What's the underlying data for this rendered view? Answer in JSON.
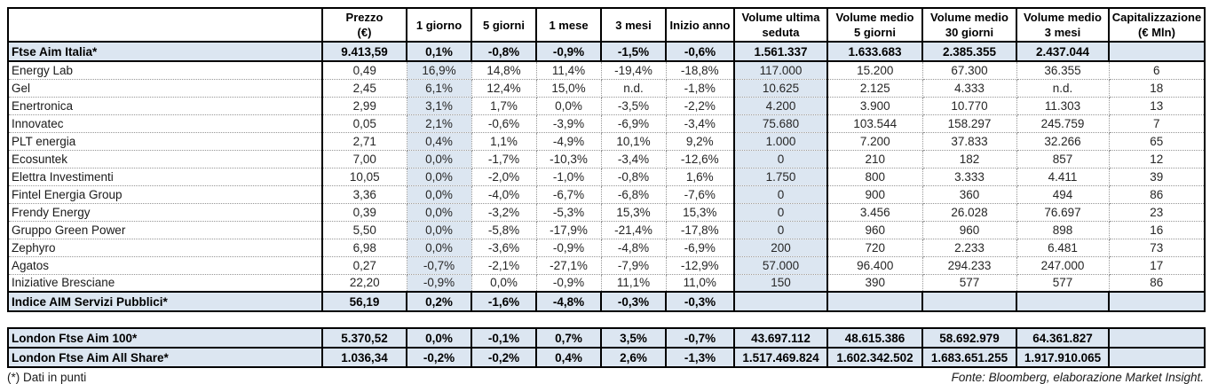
{
  "header": {
    "corner": "",
    "columns": [
      {
        "id": "prezzo",
        "line1": "Prezzo",
        "line2": "(€)"
      },
      {
        "id": "1-giorno",
        "line1": "1 giorno",
        "line2": ""
      },
      {
        "id": "5-giorni",
        "line1": "5 giorni",
        "line2": ""
      },
      {
        "id": "1-mese",
        "line1": "1 mese",
        "line2": ""
      },
      {
        "id": "3-mesi",
        "line1": "3 mesi",
        "line2": ""
      },
      {
        "id": "inizio-anno",
        "line1": "Inizio anno",
        "line2": ""
      },
      {
        "id": "vol-ultima",
        "line1": "Volume ultima",
        "line2": "seduta"
      },
      {
        "id": "vol-medio-5",
        "line1": "Volume medio",
        "line2": "5 giorni"
      },
      {
        "id": "vol-medio-30",
        "line1": "Volume medio",
        "line2": "30 giorni"
      },
      {
        "id": "vol-medio-3m",
        "line1": "Volume medio",
        "line2": "3 mesi"
      },
      {
        "id": "capitalizzazione",
        "line1": "Capitalizzazione",
        "line2": "(€ Mln)"
      }
    ]
  },
  "main_table": {
    "rows": [
      {
        "name": "Ftse Aim Italia*",
        "style": "index",
        "cells": [
          "9.413,59",
          "0,1%",
          "-0,8%",
          "-0,9%",
          "-1,5%",
          "-0,6%",
          "1.561.337",
          "1.633.683",
          "2.385.355",
          "2.437.044",
          ""
        ]
      },
      {
        "name": "Energy Lab",
        "style": "data",
        "cells": [
          "0,49",
          "16,9%",
          "14,8%",
          "11,4%",
          "-19,4%",
          "-18,8%",
          "117.000",
          "15.200",
          "67.300",
          "36.355",
          "6"
        ]
      },
      {
        "name": "Gel",
        "style": "data",
        "cells": [
          "2,45",
          "6,1%",
          "12,4%",
          "15,0%",
          "n.d.",
          "-1,8%",
          "10.625",
          "2.125",
          "4.333",
          "n.d.",
          "18"
        ]
      },
      {
        "name": "Enertronica",
        "style": "data",
        "cells": [
          "2,99",
          "3,1%",
          "1,7%",
          "0,0%",
          "-3,5%",
          "-2,2%",
          "4.200",
          "3.900",
          "10.770",
          "11.303",
          "13"
        ]
      },
      {
        "name": "Innovatec",
        "style": "data",
        "cells": [
          "0,05",
          "2,1%",
          "-0,6%",
          "-3,9%",
          "-6,9%",
          "-3,4%",
          "75.680",
          "103.544",
          "158.297",
          "245.759",
          "7"
        ]
      },
      {
        "name": "PLT energia",
        "style": "data",
        "cells": [
          "2,71",
          "0,4%",
          "1,1%",
          "-4,9%",
          "10,1%",
          "9,2%",
          "1.000",
          "7.200",
          "37.833",
          "32.266",
          "65"
        ]
      },
      {
        "name": "Ecosuntek",
        "style": "data",
        "cells": [
          "7,00",
          "0,0%",
          "-1,7%",
          "-10,3%",
          "-3,4%",
          "-12,6%",
          "0",
          "210",
          "182",
          "857",
          "12"
        ]
      },
      {
        "name": "Elettra Investimenti",
        "style": "data",
        "cells": [
          "10,05",
          "0,0%",
          "-2,0%",
          "-1,0%",
          "-0,8%",
          "1,6%",
          "1.750",
          "800",
          "3.333",
          "4.411",
          "39"
        ]
      },
      {
        "name": "Fintel Energia Group",
        "style": "data",
        "cells": [
          "3,36",
          "0,0%",
          "-4,0%",
          "-6,7%",
          "-6,8%",
          "-7,6%",
          "0",
          "900",
          "360",
          "494",
          "86"
        ]
      },
      {
        "name": "Frendy Energy",
        "style": "data",
        "cells": [
          "0,39",
          "0,0%",
          "-3,2%",
          "-5,3%",
          "15,3%",
          "15,3%",
          "0",
          "3.456",
          "26.028",
          "76.697",
          "23"
        ]
      },
      {
        "name": "Gruppo Green Power",
        "style": "data",
        "cells": [
          "5,50",
          "0,0%",
          "-5,8%",
          "-17,9%",
          "-21,4%",
          "-17,8%",
          "0",
          "960",
          "960",
          "898",
          "16"
        ]
      },
      {
        "name": "Zephyro",
        "style": "data",
        "cells": [
          "6,98",
          "0,0%",
          "-3,6%",
          "-0,9%",
          "-4,8%",
          "-6,9%",
          "200",
          "720",
          "2.233",
          "6.481",
          "73"
        ]
      },
      {
        "name": "Agatos",
        "style": "data",
        "cells": [
          "0,27",
          "-0,7%",
          "-2,1%",
          "-27,1%",
          "-7,9%",
          "-12,9%",
          "57.000",
          "96.400",
          "294.233",
          "247.000",
          "17"
        ]
      },
      {
        "name": "Iniziative Bresciane",
        "style": "data",
        "cells": [
          "22,20",
          "-0,9%",
          "0,0%",
          "-0,9%",
          "11,1%",
          "11,0%",
          "150",
          "390",
          "577",
          "577",
          "86"
        ]
      },
      {
        "name": "Indice AIM Servizi Pubblici*",
        "style": "index",
        "cells": [
          "56,19",
          "0,2%",
          "-1,6%",
          "-4,8%",
          "-0,3%",
          "-0,3%",
          "",
          "",
          "",
          "",
          ""
        ]
      }
    ]
  },
  "london_table": {
    "rows": [
      {
        "name": "London Ftse Aim 100*",
        "style": "london",
        "cells": [
          "5.370,52",
          "0,0%",
          "-0,1%",
          "0,7%",
          "3,5%",
          "-0,7%",
          "43.697.112",
          "48.615.386",
          "58.692.979",
          "64.361.827",
          ""
        ]
      },
      {
        "name": "London Ftse Aim All Share*",
        "style": "london",
        "cells": [
          "1.036,34",
          "-0,2%",
          "-0,2%",
          "0,4%",
          "2,6%",
          "-1,3%",
          "1.517.469.824",
          "1.602.342.502",
          "1.683.651.255",
          "1.917.910.065",
          ""
        ]
      }
    ]
  },
  "footer": {
    "note": "(*) Dati in punti",
    "source": "Fonte: Bloomberg, elaborazione Market Insight."
  },
  "colors": {
    "row_shading": "#dce6f1",
    "border": "#000000",
    "dotted_separator": "#969696"
  }
}
